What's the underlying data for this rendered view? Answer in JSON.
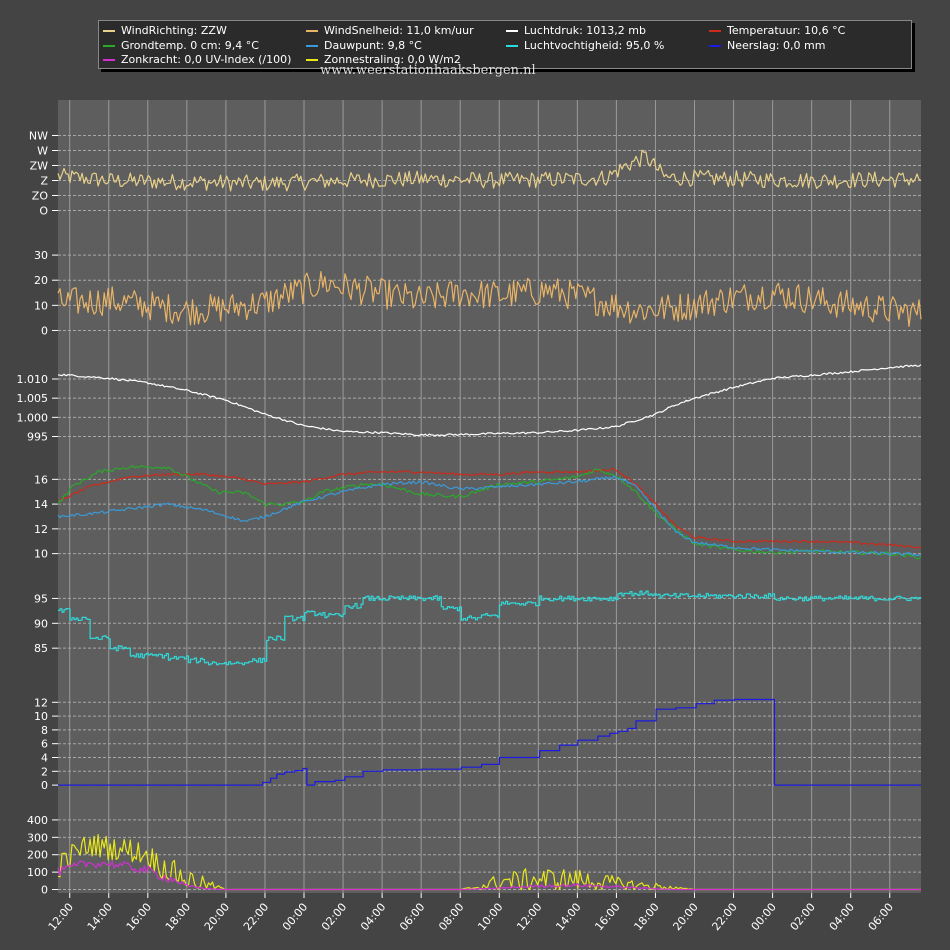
{
  "legend": {
    "items": [
      {
        "label": "WindRichting: ZZW",
        "color": "#e8d08a"
      },
      {
        "label": "WindSnelheid: 11,0 km/uur",
        "color": "#e8b468"
      },
      {
        "label": "Luchtdruk: 1013,2 mb",
        "color": "#ffffff"
      },
      {
        "label": "Temperatuur: 10,6 °C",
        "color": "#cc2a1a"
      },
      {
        "label": "Grondtemp. 0 cm: 9,4 °C",
        "color": "#2aa82a"
      },
      {
        "label": "Dauwpunt: 9,8 °C",
        "color": "#3a9ad8"
      },
      {
        "label": "Luchtvochtigheid: 95,0 %",
        "color": "#30d8d8"
      },
      {
        "label": "Neerslag: 0,0 mm",
        "color": "#1a1ae0"
      },
      {
        "label": "Zonkracht: 0,0 UV-Index (/100)",
        "color": "#d030d0"
      },
      {
        "label": "Zonnestraling: 0,0 W/m2",
        "color": "#e8e818"
      }
    ]
  },
  "watermark": "www.weerstationhaaksbergen.nl",
  "chart_data": {
    "type": "line",
    "x_tick_labels": [
      "12:00",
      "14:00",
      "16:00",
      "18:00",
      "20:00",
      "22:00",
      "00:00",
      "02:00",
      "04:00",
      "06:00",
      "08:00",
      "10:00",
      "12:00",
      "14:00",
      "16:00",
      "18:00",
      "20:00",
      "22:00",
      "00:00",
      "02:00",
      "04:00",
      "06:00"
    ],
    "x_hours": [
      0,
      2,
      4,
      6,
      8,
      10,
      12,
      14,
      16,
      18,
      20,
      22,
      24,
      26,
      28,
      30,
      32,
      34,
      36,
      38,
      40,
      42
    ],
    "x_range_hours": [
      -0.6,
      43.6
    ],
    "panels": [
      {
        "name": "wind-direction",
        "ylim": [
          -0.5,
          5.5
        ],
        "yticks": [
          {
            "v": 0,
            "label": "O"
          },
          {
            "v": 1,
            "label": "ZO"
          },
          {
            "v": 2,
            "label": "Z"
          },
          {
            "v": 3,
            "label": "ZW"
          },
          {
            "v": 4,
            "label": "W"
          },
          {
            "v": 5,
            "label": "NW"
          }
        ],
        "series": [
          {
            "name": "WindRichting",
            "color": "#e8d08a",
            "noise": 0.55,
            "x": [
              -0.6,
              2,
              6,
              10,
              14,
              18,
              22,
              26,
              27.5,
              28.5,
              29.5,
              30.5,
              34,
              38,
              43.6
            ],
            "y": [
              2.3,
              2.0,
              1.9,
              1.8,
              2.0,
              2.1,
              2.0,
              2.1,
              2.2,
              3.0,
              3.6,
              2.2,
              2.1,
              2.0,
              2.1
            ]
          }
        ]
      },
      {
        "name": "wind-speed",
        "ylim": [
          -3,
          36
        ],
        "yticks": [
          {
            "v": 0,
            "label": "0"
          },
          {
            "v": 10,
            "label": "10"
          },
          {
            "v": 20,
            "label": "20"
          },
          {
            "v": 30,
            "label": "30"
          }
        ],
        "series": [
          {
            "name": "WindSnelheid",
            "color": "#e8b468",
            "noise": 6,
            "x": [
              -0.6,
              2,
              4,
              6,
              8,
              10,
              11,
              13,
              15,
              18,
              20,
              22,
              24.5,
              27,
              29,
              31,
              34,
              36,
              39,
              42,
              43.6
            ],
            "y": [
              11,
              12,
              10,
              8,
              9,
              11,
              14,
              19,
              16,
              12,
              15,
              14,
              16,
              12,
              8,
              9,
              13,
              15,
              11,
              8,
              7
            ]
          }
        ]
      },
      {
        "name": "pressure",
        "ylim": [
          992,
          1016
        ],
        "yticks": [
          {
            "v": 995,
            "label": "995"
          },
          {
            "v": 1000,
            "label": "1.000"
          },
          {
            "v": 1005,
            "label": "1.005"
          },
          {
            "v": 1010,
            "label": "1.010"
          }
        ],
        "series": [
          {
            "name": "Luchtdruk",
            "color": "#ffffff",
            "noise": 0.25,
            "x": [
              -0.6,
              2,
              4,
              6,
              8,
              10,
              12,
              14,
              16,
              18,
              20,
              22,
              24,
              26,
              28,
              30,
              31,
              32,
              34,
              36,
              38,
              40,
              42,
              43.6
            ],
            "y": [
              1011.2,
              1010.2,
              1009.0,
              1007.0,
              1004.5,
              1000.8,
              997.8,
              996.3,
              996.0,
              995.4,
              995.5,
              995.8,
              996.0,
              996.6,
              997.6,
              1000.8,
              1003.2,
              1005.0,
              1007.8,
              1010.2,
              1011.0,
              1011.9,
              1013.0,
              1013.6
            ]
          }
        ]
      },
      {
        "name": "temperatures",
        "ylim": [
          9,
          17.4
        ],
        "yticks": [
          {
            "v": 10,
            "label": "10"
          },
          {
            "v": 12,
            "label": "12"
          },
          {
            "v": 14,
            "label": "14"
          },
          {
            "v": 16,
            "label": "16"
          }
        ],
        "series": [
          {
            "name": "Temperatuur",
            "color": "#cc2a1a",
            "noise": 0.1,
            "x": [
              -0.6,
              1,
              3,
              5,
              7,
              9,
              10,
              12,
              14,
              16,
              18,
              20,
              22,
              24,
              26,
              28,
              29,
              30,
              31,
              32,
              34,
              36,
              38,
              40,
              42,
              43.6
            ],
            "y": [
              14.2,
              15.4,
              16.2,
              16.4,
              16.4,
              16.0,
              15.6,
              15.8,
              16.4,
              16.6,
              16.6,
              16.4,
              16.4,
              16.6,
              16.6,
              16.8,
              15.6,
              14.0,
              12.3,
              11.3,
              11.0,
              11.0,
              11.0,
              10.9,
              10.7,
              10.5
            ]
          },
          {
            "name": "Grondtemp. 0 cm",
            "color": "#2aa82a",
            "noise": 0.15,
            "x": [
              -0.6,
              0.2,
              1.5,
              3,
              5,
              6,
              7.5,
              9,
              10,
              11,
              12,
              13,
              15,
              16,
              18,
              20,
              22,
              24,
              26,
              27,
              28,
              29,
              30,
              31,
              32,
              34,
              36,
              38,
              40,
              42,
              43.6
            ],
            "y": [
              14.0,
              15.5,
              16.6,
              17.0,
              17.0,
              16.2,
              15.0,
              14.9,
              14.0,
              14.0,
              14.2,
              15.0,
              15.6,
              15.6,
              14.8,
              14.6,
              15.6,
              15.8,
              16.2,
              16.8,
              16.3,
              15.0,
              13.3,
              12.0,
              10.8,
              10.3,
              10.1,
              10.2,
              10.1,
              10.0,
              9.7
            ]
          },
          {
            "name": "Dauwpunt",
            "color": "#3a9ad8",
            "noise": 0.12,
            "x": [
              -0.6,
              1,
              3,
              5,
              7,
              9,
              10,
              12,
              14,
              16,
              18,
              20,
              22,
              24,
              26,
              28,
              29,
              30,
              31,
              32,
              34,
              36,
              38,
              40,
              42,
              43.6
            ],
            "y": [
              13.0,
              13.2,
              13.6,
              14.0,
              13.5,
              12.6,
              13.0,
              14.2,
              15.0,
              15.6,
              15.8,
              15.2,
              15.4,
              15.6,
              15.8,
              16.2,
              15.4,
              13.6,
              11.8,
              10.9,
              10.5,
              10.3,
              10.2,
              10.1,
              10.0,
              9.9
            ]
          }
        ]
      },
      {
        "name": "humidity",
        "ylim": [
          79,
          97.5
        ],
        "yticks": [
          {
            "v": 85,
            "label": "85"
          },
          {
            "v": 90,
            "label": "90"
          },
          {
            "v": 95,
            "label": "95"
          }
        ],
        "series": [
          {
            "name": "Luchtvochtigheid",
            "color": "#30d8d8",
            "noise": 0.5,
            "step": 1,
            "x": [
              -0.6,
              0,
              1,
              2,
              3,
              5,
              6,
              7,
              8,
              9,
              10,
              11,
              12,
              13,
              14,
              15,
              16,
              17,
              18,
              19,
              20,
              21,
              22,
              24,
              26,
              28,
              30,
              32,
              34,
              36,
              38,
              40,
              42,
              43.6
            ],
            "y": [
              92.5,
              91.0,
              87.0,
              85.0,
              83.5,
              83.0,
              82.5,
              82.0,
              82.0,
              82.5,
              87.0,
              91.0,
              92.0,
              91.5,
              93.5,
              95.0,
              95.0,
              95.0,
              95.0,
              93.0,
              91.0,
              91.5,
              94.0,
              95.0,
              95.0,
              96.0,
              95.5,
              95.5,
              95.5,
              95.0,
              95.0,
              95.0,
              95.0,
              95.0
            ]
          }
        ]
      },
      {
        "name": "precipitation",
        "ylim": [
          -1,
          13.2
        ],
        "yticks": [
          {
            "v": 0,
            "label": "0"
          },
          {
            "v": 2,
            "label": "2"
          },
          {
            "v": 4,
            "label": "4"
          },
          {
            "v": 6,
            "label": "6"
          },
          {
            "v": 8,
            "label": "8"
          },
          {
            "v": 10,
            "label": "10"
          },
          {
            "v": 12,
            "label": "12"
          }
        ],
        "series": [
          {
            "name": "Neerslag",
            "color": "#1a1ae0",
            "noise": 0,
            "step": 1,
            "x": [
              -0.6,
              9.8,
              10.2,
              10.6,
              11,
              11.5,
              11.9,
              12.0,
              12.1,
              12.5,
              13.5,
              14,
              15,
              16,
              18,
              20,
              21,
              22,
              24,
              25,
              26,
              27,
              27.6,
              28,
              28.5,
              29,
              30,
              31,
              32,
              33,
              34,
              35.9,
              36.0,
              38,
              40,
              42,
              43.6
            ],
            "y": [
              0,
              0.4,
              1.0,
              1.6,
              1.9,
              2.1,
              2.4,
              2.4,
              0.0,
              0.5,
              0.7,
              1.2,
              2.0,
              2.2,
              2.3,
              2.6,
              3.0,
              4.0,
              5.0,
              5.8,
              6.5,
              7.1,
              7.5,
              7.8,
              8.2,
              9.3,
              11.0,
              11.2,
              11.8,
              12.3,
              12.4,
              12.4,
              0,
              0,
              0,
              0,
              0
            ]
          }
        ]
      },
      {
        "name": "solar",
        "ylim": [
          -20,
          480
        ],
        "yticks": [
          {
            "v": 0,
            "label": "0"
          },
          {
            "v": 100,
            "label": "100"
          },
          {
            "v": 200,
            "label": "200"
          },
          {
            "v": 300,
            "label": "300"
          },
          {
            "v": 400,
            "label": "400"
          }
        ],
        "series": [
          {
            "name": "Zonnestraling",
            "color": "#e8e818",
            "noise": 70,
            "noiseScale": true,
            "x": [
              -0.6,
              0.5,
              1.2,
              2,
              3,
              4,
              4.6,
              5.5,
              6,
              7,
              8,
              20,
              21,
              22,
              24,
              26,
              27,
              28,
              29,
              30,
              31,
              32,
              43.6
            ],
            "y": [
              130,
              230,
              260,
              240,
              230,
              200,
              140,
              90,
              60,
              30,
              0,
              0,
              15,
              45,
              60,
              55,
              45,
              35,
              25,
              18,
              8,
              0,
              0
            ]
          },
          {
            "name": "Zonkracht",
            "color": "#d030d0",
            "noise": 25,
            "noiseScale": true,
            "x": [
              -0.6,
              0.5,
              1,
              2,
              3,
              4,
              4.6,
              5.5,
              6,
              7,
              8,
              20,
              22,
              24,
              26,
              27,
              28,
              29,
              30,
              31,
              32,
              43.6
            ],
            "y": [
              100,
              140,
              150,
              150,
              130,
              110,
              80,
              50,
              20,
              5,
              0,
              0,
              8,
              20,
              25,
              20,
              15,
              10,
              5,
              0,
              0,
              0
            ]
          }
        ]
      }
    ]
  }
}
